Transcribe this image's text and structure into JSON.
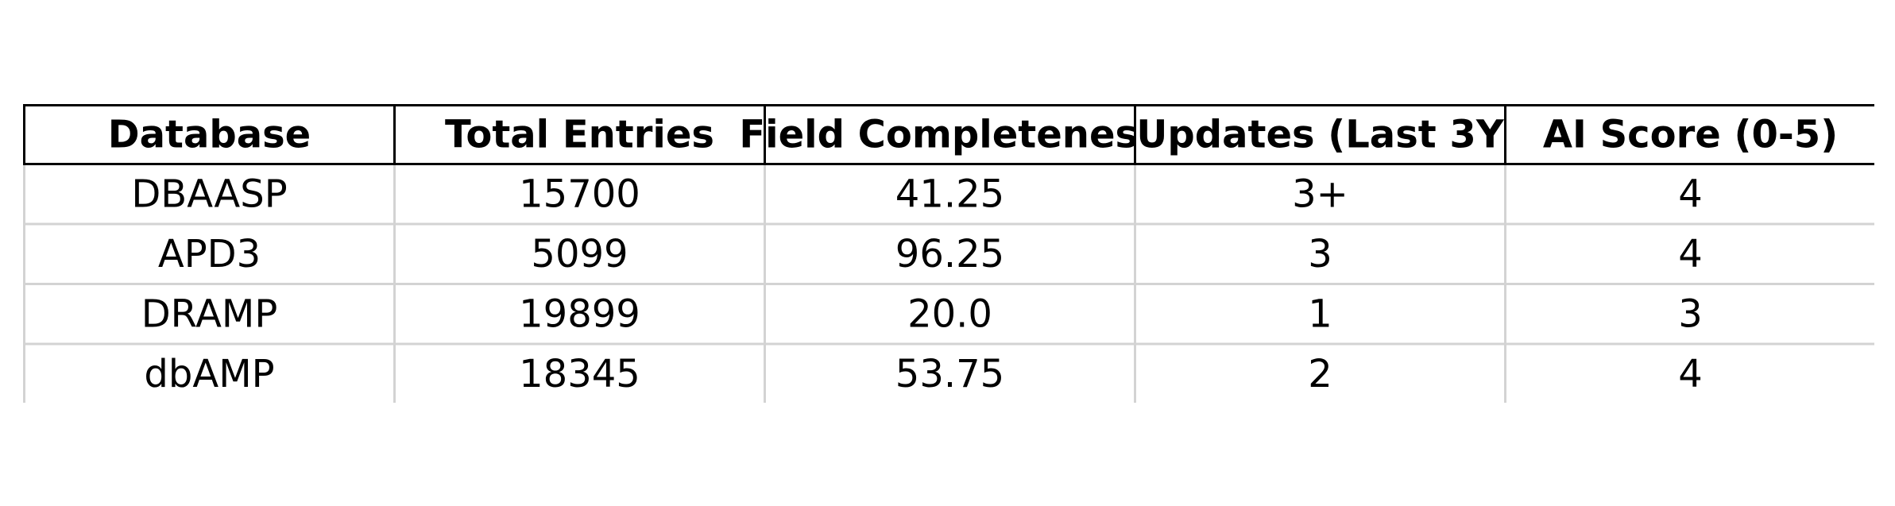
{
  "chart_data": {
    "type": "table",
    "columns": [
      "Database",
      "Total Entries",
      "Field Completeness",
      "Updates (Last 3Y",
      "AI Score (0-5)"
    ],
    "rows": [
      [
        "DBAASP",
        "15700",
        "41.25",
        "3+",
        "4"
      ],
      [
        "APD3",
        "5099",
        "96.25",
        "3",
        "4"
      ],
      [
        "DRAMP",
        "19899",
        "20.0",
        "1",
        "3"
      ],
      [
        "dbAMP",
        "18345",
        "53.75",
        "2",
        "4"
      ]
    ]
  },
  "colors": {
    "header_border": "#000000",
    "cell_border": "#d3d3d3",
    "text": "#000000",
    "background": "#ffffff"
  }
}
